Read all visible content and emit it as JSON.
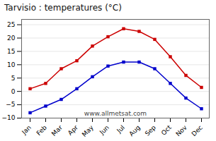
{
  "chart_data": {
    "type": "line",
    "title": "Tarvisio : temperatures (°C)",
    "categories": [
      "Jan",
      "Feb",
      "Mar",
      "Apr",
      "May",
      "Jun",
      "Jul",
      "Aug",
      "Sep",
      "Oct",
      "Nov",
      "Dec"
    ],
    "series": [
      {
        "color": "#cc0000",
        "marker": "square",
        "values": [
          1,
          3,
          8.5,
          11.5,
          17,
          20.5,
          23.5,
          22.5,
          19.5,
          13,
          6,
          1.5
        ]
      },
      {
        "color": "#0000cc",
        "marker": "square",
        "values": [
          -8,
          -5.5,
          -3,
          1,
          5.5,
          9.5,
          11,
          11,
          8.5,
          3,
          -2.5,
          -6.5
        ]
      }
    ],
    "ylim": [
      -10,
      27
    ],
    "yticks": [
      -10,
      -5,
      0,
      5,
      10,
      15,
      20,
      25
    ],
    "grid": true,
    "annotations": [
      "www.allmetsat.com"
    ]
  }
}
